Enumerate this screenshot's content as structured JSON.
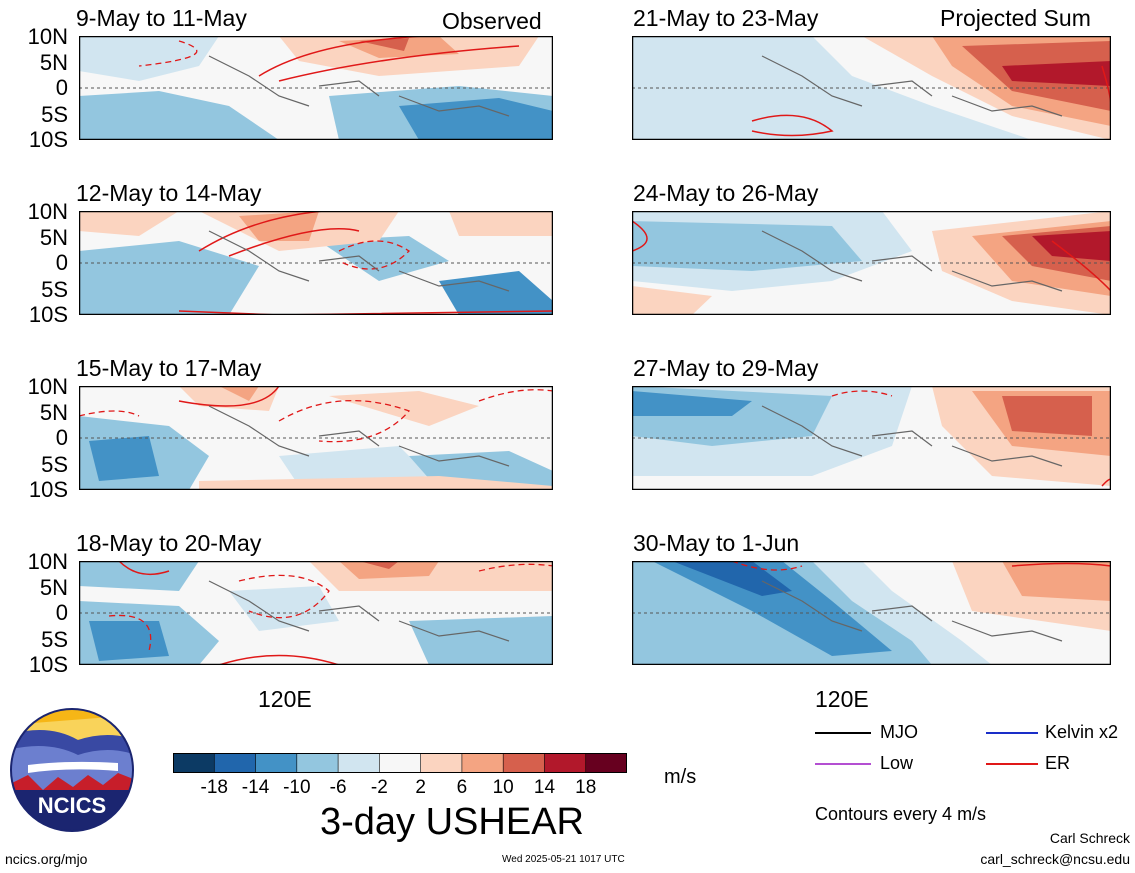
{
  "panels": [
    {
      "id": "p1",
      "title": "9-May to 11-May",
      "label": "Observed"
    },
    {
      "id": "p2",
      "title": "12-May to 14-May",
      "label": ""
    },
    {
      "id": "p3",
      "title": "15-May to 17-May",
      "label": ""
    },
    {
      "id": "p4",
      "title": "18-May to 20-May",
      "label": ""
    },
    {
      "id": "p5",
      "title": "21-May to 23-May",
      "label": "Projected Sum"
    },
    {
      "id": "p6",
      "title": "24-May to 26-May",
      "label": ""
    },
    {
      "id": "p7",
      "title": "27-May to 29-May",
      "label": ""
    },
    {
      "id": "p8",
      "title": "30-May to 1-Jun",
      "label": ""
    }
  ],
  "axes": {
    "lat_ticks": [
      "10N",
      "5N",
      "0",
      "5S",
      "10S"
    ],
    "lon_tick": "120E"
  },
  "colorbar": {
    "tick_labels": [
      "-18",
      "-14",
      "-10",
      "-6",
      "-2",
      "2",
      "6",
      "10",
      "14",
      "18"
    ],
    "colors": [
      "#0c3a64",
      "#2166ac",
      "#4392c6",
      "#93c6df",
      "#d1e5f0",
      "#f7f7f7",
      "#fbd4c0",
      "#f4a482",
      "#d6604d",
      "#b2182b",
      "#67001f"
    ],
    "units": "m/s"
  },
  "title": "3-day USHEAR",
  "legend": {
    "items": [
      {
        "name": "MJO",
        "color": "#000000"
      },
      {
        "name": "Kelvin x2",
        "color": "#1a2ec8"
      },
      {
        "name": "Low",
        "color": "#b44fd2"
      },
      {
        "name": "ER",
        "color": "#e01818"
      }
    ],
    "contours_note": "Contours every 4 m/s"
  },
  "footer": {
    "left": "ncics.org/mjo",
    "timestamp": "Wed 2025-05-21 1017 UTC",
    "author": "Carl Schreck",
    "email": "carl_schreck@ncsu.edu"
  },
  "logo": {
    "text": "NCICS"
  }
}
